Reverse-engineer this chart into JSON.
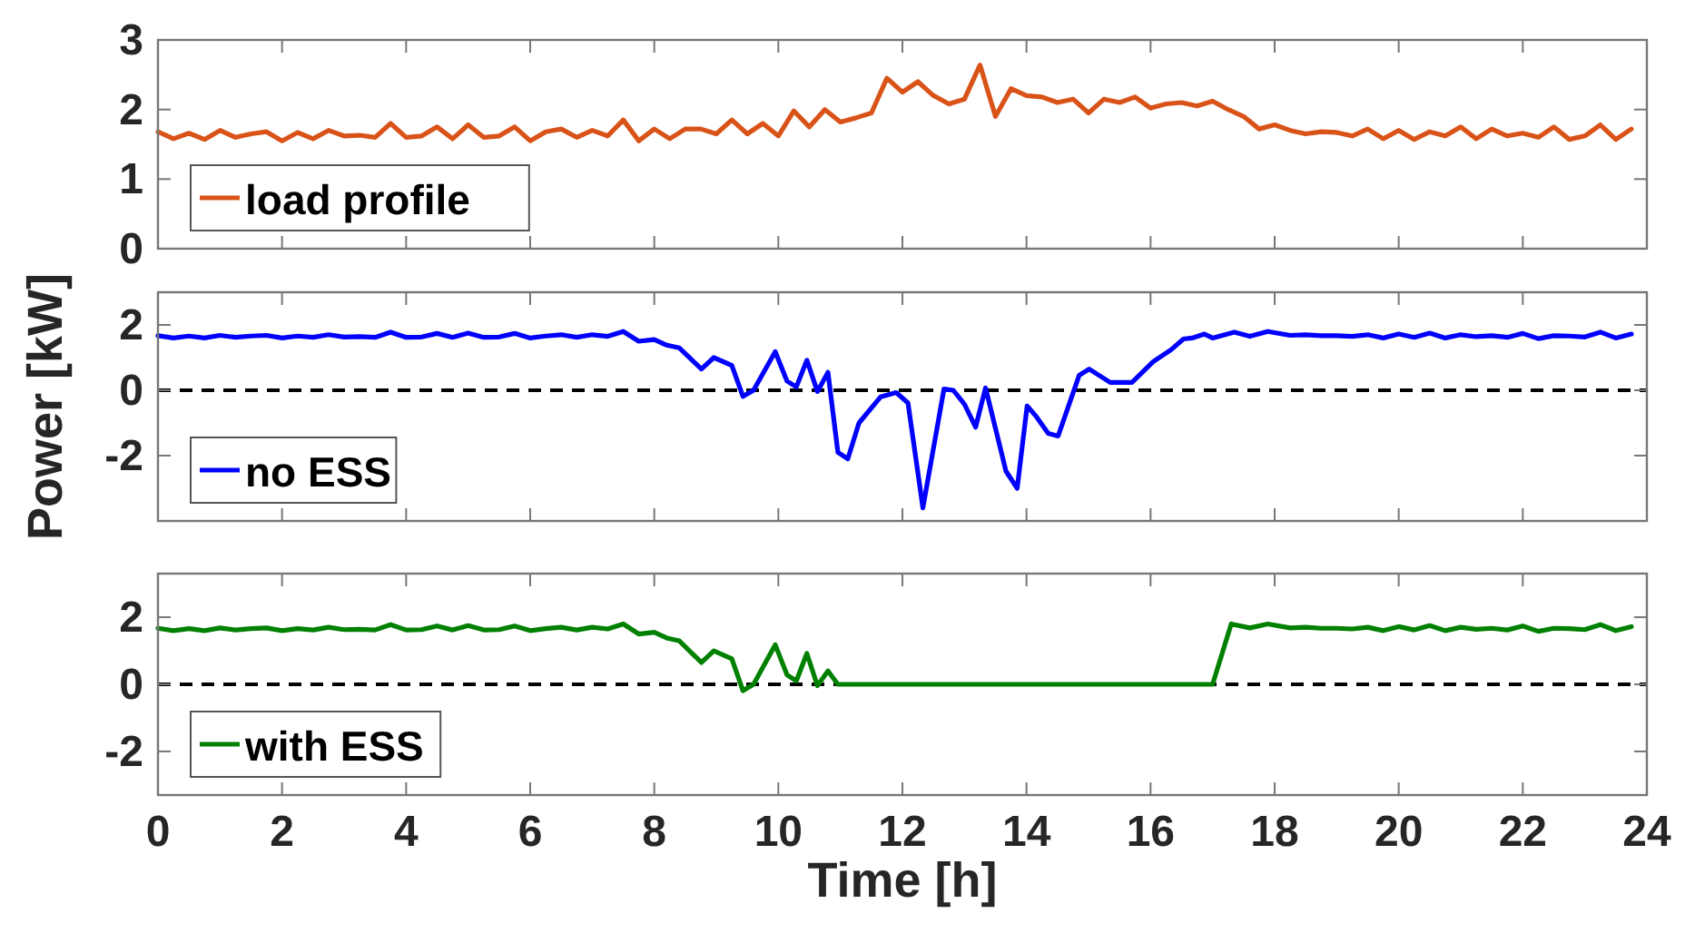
{
  "chart_data": [
    {
      "type": "line",
      "xlim": [
        0,
        24
      ],
      "xticks": [
        0,
        2,
        4,
        6,
        8,
        10,
        12,
        14,
        16,
        18,
        20,
        22,
        24
      ],
      "ylim": [
        0,
        3
      ],
      "yticks": [
        0,
        1,
        2,
        3
      ],
      "tick_labels": "y",
      "legend": "bottom left",
      "grid": false,
      "series": [
        {
          "name": "load profile",
          "color": "#d95319",
          "x": [
            0,
            0.25,
            0.5,
            0.75,
            1,
            1.25,
            1.5,
            1.75,
            2,
            2.25,
            2.5,
            2.75,
            3,
            3.25,
            3.5,
            3.75,
            4,
            4.25,
            4.5,
            4.75,
            5,
            5.25,
            5.5,
            5.75,
            6,
            6.25,
            6.5,
            6.75,
            7,
            7.25,
            7.5,
            7.75,
            8,
            8.25,
            8.5,
            8.75,
            9,
            9.25,
            9.5,
            9.75,
            10,
            10.25,
            10.5,
            10.75,
            11,
            11.25,
            11.5,
            11.75,
            12,
            12.25,
            12.5,
            12.75,
            13,
            13.25,
            13.5,
            13.75,
            14,
            14.25,
            14.5,
            14.75,
            15,
            15.25,
            15.5,
            15.75,
            16,
            16.25,
            16.5,
            16.75,
            17,
            17.25,
            17.5,
            17.75,
            18,
            18.25,
            18.5,
            18.75,
            19,
            19.25,
            19.5,
            19.75,
            20,
            20.25,
            20.5,
            20.75,
            21,
            21.25,
            21.5,
            21.75,
            22,
            22.25,
            22.5,
            22.75,
            23,
            23.25,
            23.5,
            23.75
          ],
          "values": [
            1.68,
            1.58,
            1.66,
            1.57,
            1.7,
            1.6,
            1.65,
            1.68,
            1.55,
            1.67,
            1.58,
            1.7,
            1.62,
            1.63,
            1.6,
            1.8,
            1.6,
            1.62,
            1.75,
            1.58,
            1.78,
            1.6,
            1.62,
            1.75,
            1.55,
            1.68,
            1.72,
            1.6,
            1.7,
            1.62,
            1.85,
            1.55,
            1.72,
            1.58,
            1.72,
            1.72,
            1.65,
            1.85,
            1.65,
            1.8,
            1.62,
            1.98,
            1.75,
            2.0,
            1.82,
            1.88,
            1.95,
            2.45,
            2.25,
            2.4,
            2.2,
            2.08,
            2.15,
            2.64,
            1.9,
            2.3,
            2.2,
            2.18,
            2.1,
            2.15,
            1.95,
            2.15,
            2.1,
            2.18,
            2.02,
            2.08,
            2.1,
            2.05,
            2.12,
            2.0,
            1.9,
            1.72,
            1.78,
            1.7,
            1.65,
            1.68,
            1.67,
            1.62,
            1.72,
            1.58,
            1.7,
            1.57,
            1.68,
            1.62,
            1.75,
            1.58,
            1.72,
            1.62,
            1.66,
            1.6,
            1.75,
            1.57,
            1.62,
            1.78,
            1.57,
            1.72
          ]
        }
      ]
    },
    {
      "type": "line",
      "ylabel": "Power [kW]",
      "xlim": [
        0,
        24
      ],
      "xticks": [
        0,
        2,
        4,
        6,
        8,
        10,
        12,
        14,
        16,
        18,
        20,
        22,
        24
      ],
      "ylim": [
        -4,
        3
      ],
      "yticks": [
        -2,
        0,
        2
      ],
      "tick_labels": "y",
      "legend": "bottom left",
      "grid": false,
      "ref_lines": [
        {
          "axis": "y",
          "value": 0,
          "color": "#000000",
          "line_style": "dashed"
        }
      ],
      "series": [
        {
          "name": "no ESS",
          "color": "#0000ff",
          "x": [
            0,
            0.25,
            0.5,
            0.75,
            1,
            1.25,
            1.5,
            1.75,
            2,
            2.25,
            2.5,
            2.75,
            3,
            3.25,
            3.5,
            3.75,
            4,
            4.25,
            4.5,
            4.75,
            5,
            5.25,
            5.5,
            5.75,
            6,
            6.25,
            6.5,
            6.75,
            7,
            7.25,
            7.5,
            7.75,
            8,
            8.2,
            8.4,
            8.76,
            8.96,
            9.25,
            9.43,
            9.6,
            9.95,
            10.14,
            10.29,
            10.46,
            10.63,
            10.8,
            10.96,
            11.12,
            11.3,
            11.65,
            11.9,
            12.09,
            12.33,
            12.67,
            12.82,
            13.0,
            13.18,
            13.34,
            13.67,
            13.85,
            14.01,
            14.16,
            14.35,
            14.51,
            14.85,
            15.01,
            15.35,
            15.7,
            16.04,
            16.33,
            16.53,
            16.67,
            16.87,
            17.0,
            17.35,
            17.6,
            17.89,
            18.25,
            18.5,
            18.75,
            19,
            19.25,
            19.5,
            19.75,
            20,
            20.25,
            20.5,
            20.75,
            21,
            21.25,
            21.5,
            21.75,
            22,
            22.25,
            22.5,
            22.75,
            23,
            23.25,
            23.5,
            23.75
          ],
          "values": [
            1.67,
            1.6,
            1.66,
            1.6,
            1.68,
            1.62,
            1.66,
            1.68,
            1.6,
            1.66,
            1.62,
            1.7,
            1.63,
            1.64,
            1.62,
            1.78,
            1.62,
            1.63,
            1.74,
            1.62,
            1.75,
            1.62,
            1.63,
            1.74,
            1.6,
            1.66,
            1.7,
            1.62,
            1.7,
            1.65,
            1.8,
            1.5,
            1.55,
            1.38,
            1.3,
            0.65,
            1.0,
            0.76,
            -0.19,
            0.0,
            1.18,
            0.28,
            0.1,
            0.92,
            -0.04,
            0.55,
            -1.9,
            -2.1,
            -1.0,
            -0.2,
            -0.07,
            -0.39,
            -3.6,
            0.04,
            0.0,
            -0.43,
            -1.13,
            0.07,
            -2.48,
            -3.0,
            -0.48,
            -0.81,
            -1.32,
            -1.4,
            0.46,
            0.65,
            0.24,
            0.24,
            0.87,
            1.24,
            1.57,
            1.6,
            1.72,
            1.6,
            1.78,
            1.65,
            1.8,
            1.68,
            1.7,
            1.67,
            1.67,
            1.65,
            1.7,
            1.6,
            1.72,
            1.62,
            1.75,
            1.6,
            1.7,
            1.64,
            1.67,
            1.62,
            1.74,
            1.58,
            1.67,
            1.66,
            1.63,
            1.78,
            1.6,
            1.72
          ]
        }
      ]
    },
    {
      "type": "line",
      "xlabel": "Time [h]",
      "xlim": [
        0,
        24
      ],
      "xticks": [
        0,
        2,
        4,
        6,
        8,
        10,
        12,
        14,
        16,
        18,
        20,
        22,
        24
      ],
      "ylim": [
        -3.3,
        3.3
      ],
      "yticks": [
        -2,
        0,
        2
      ],
      "legend": "bottom left",
      "grid": false,
      "ref_lines": [
        {
          "axis": "y",
          "value": 0,
          "color": "#000000",
          "line_style": "dashed"
        }
      ],
      "series": [
        {
          "name": "with ESS",
          "color": "#008000",
          "x": [
            0,
            0.25,
            0.5,
            0.75,
            1,
            1.25,
            1.5,
            1.75,
            2,
            2.25,
            2.5,
            2.75,
            3,
            3.25,
            3.5,
            3.75,
            4,
            4.25,
            4.5,
            4.75,
            5,
            5.25,
            5.5,
            5.75,
            6,
            6.25,
            6.5,
            6.75,
            7,
            7.25,
            7.5,
            7.75,
            8,
            8.2,
            8.4,
            8.76,
            8.96,
            9.25,
            9.43,
            9.6,
            9.95,
            10.14,
            10.29,
            10.46,
            10.63,
            10.8,
            10.96,
            17.0,
            17.3,
            17.6,
            17.89,
            18.25,
            18.5,
            18.75,
            19,
            19.25,
            19.5,
            19.75,
            20,
            20.25,
            20.5,
            20.75,
            21,
            21.25,
            21.5,
            21.75,
            22,
            22.25,
            22.5,
            22.75,
            23,
            23.25,
            23.5,
            23.75
          ],
          "values": [
            1.67,
            1.6,
            1.66,
            1.6,
            1.68,
            1.62,
            1.66,
            1.68,
            1.6,
            1.66,
            1.62,
            1.7,
            1.63,
            1.64,
            1.62,
            1.78,
            1.62,
            1.63,
            1.74,
            1.62,
            1.75,
            1.62,
            1.63,
            1.74,
            1.6,
            1.66,
            1.7,
            1.62,
            1.7,
            1.65,
            1.8,
            1.5,
            1.55,
            1.38,
            1.3,
            0.65,
            1.0,
            0.76,
            -0.19,
            0.0,
            1.18,
            0.28,
            0.1,
            0.92,
            -0.04,
            0.4,
            0.0,
            0.0,
            1.8,
            1.68,
            1.8,
            1.68,
            1.7,
            1.67,
            1.67,
            1.65,
            1.7,
            1.6,
            1.72,
            1.62,
            1.75,
            1.6,
            1.7,
            1.64,
            1.67,
            1.62,
            1.74,
            1.58,
            1.67,
            1.66,
            1.63,
            1.78,
            1.6,
            1.72
          ]
        }
      ]
    }
  ]
}
